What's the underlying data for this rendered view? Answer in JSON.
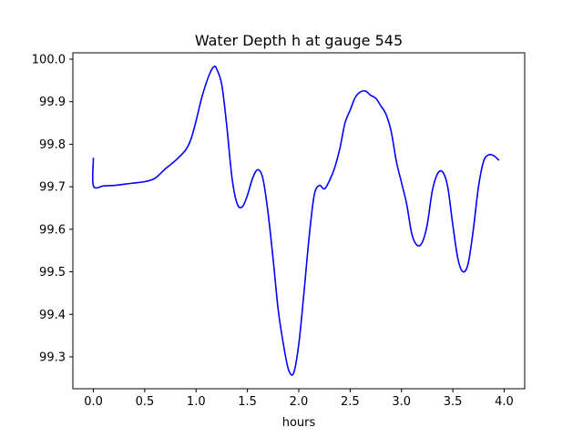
{
  "chart_data": {
    "type": "line",
    "title": "Water Depth h at gauge 545",
    "xlabel": "hours",
    "ylabel": "",
    "xlim": [
      -0.2,
      4.2
    ],
    "ylim": [
      99.225,
      100.015
    ],
    "x_ticks": [
      0.0,
      0.5,
      1.0,
      1.5,
      2.0,
      2.5,
      3.0,
      3.5,
      4.0
    ],
    "x_tick_labels": [
      "0.0",
      "0.5",
      "1.0",
      "1.5",
      "2.0",
      "2.5",
      "3.0",
      "3.5",
      "4.0"
    ],
    "y_ticks": [
      99.3,
      99.4,
      99.5,
      99.6,
      99.7,
      99.8,
      99.9,
      100.0
    ],
    "y_tick_labels": [
      "99.3",
      "99.4",
      "99.5",
      "99.6",
      "99.7",
      "99.8",
      "99.9",
      "100.0"
    ],
    "grid": false,
    "series": [
      {
        "color": "#0000ff",
        "points": [
          [
            0.0,
            99.768
          ],
          [
            0.0,
            99.702
          ],
          [
            0.1,
            99.702
          ],
          [
            0.2,
            99.703
          ],
          [
            0.3,
            99.706
          ],
          [
            0.4,
            99.709
          ],
          [
            0.5,
            99.712
          ],
          [
            0.6,
            99.72
          ],
          [
            0.7,
            99.742
          ],
          [
            0.8,
            99.762
          ],
          [
            0.9,
            99.787
          ],
          [
            0.95,
            99.812
          ],
          [
            1.0,
            99.855
          ],
          [
            1.05,
            99.905
          ],
          [
            1.1,
            99.945
          ],
          [
            1.15,
            99.975
          ],
          [
            1.18,
            99.983
          ],
          [
            1.2,
            99.977
          ],
          [
            1.25,
            99.94
          ],
          [
            1.3,
            99.84
          ],
          [
            1.35,
            99.72
          ],
          [
            1.4,
            99.66
          ],
          [
            1.45,
            99.653
          ],
          [
            1.5,
            99.68
          ],
          [
            1.55,
            99.72
          ],
          [
            1.6,
            99.74
          ],
          [
            1.65,
            99.72
          ],
          [
            1.7,
            99.64
          ],
          [
            1.75,
            99.53
          ],
          [
            1.8,
            99.41
          ],
          [
            1.85,
            99.33
          ],
          [
            1.9,
            99.27
          ],
          [
            1.95,
            99.262
          ],
          [
            2.0,
            99.33
          ],
          [
            2.05,
            99.45
          ],
          [
            2.1,
            99.58
          ],
          [
            2.15,
            99.68
          ],
          [
            2.2,
            99.703
          ],
          [
            2.25,
            99.695
          ],
          [
            2.3,
            99.715
          ],
          [
            2.35,
            99.745
          ],
          [
            2.4,
            99.79
          ],
          [
            2.45,
            99.85
          ],
          [
            2.5,
            99.88
          ],
          [
            2.55,
            99.91
          ],
          [
            2.6,
            99.923
          ],
          [
            2.65,
            99.925
          ],
          [
            2.7,
            99.915
          ],
          [
            2.75,
            99.908
          ],
          [
            2.8,
            99.89
          ],
          [
            2.85,
            99.87
          ],
          [
            2.9,
            99.83
          ],
          [
            2.95,
            99.76
          ],
          [
            3.0,
            99.71
          ],
          [
            3.05,
            99.66
          ],
          [
            3.1,
            99.59
          ],
          [
            3.15,
            99.563
          ],
          [
            3.2,
            99.568
          ],
          [
            3.25,
            99.61
          ],
          [
            3.3,
            99.69
          ],
          [
            3.35,
            99.73
          ],
          [
            3.4,
            99.735
          ],
          [
            3.45,
            99.7
          ],
          [
            3.5,
            99.61
          ],
          [
            3.55,
            99.53
          ],
          [
            3.6,
            99.5
          ],
          [
            3.65,
            99.52
          ],
          [
            3.7,
            99.6
          ],
          [
            3.75,
            99.7
          ],
          [
            3.8,
            99.76
          ],
          [
            3.85,
            99.775
          ],
          [
            3.9,
            99.773
          ],
          [
            3.95,
            99.762
          ]
        ]
      }
    ]
  }
}
